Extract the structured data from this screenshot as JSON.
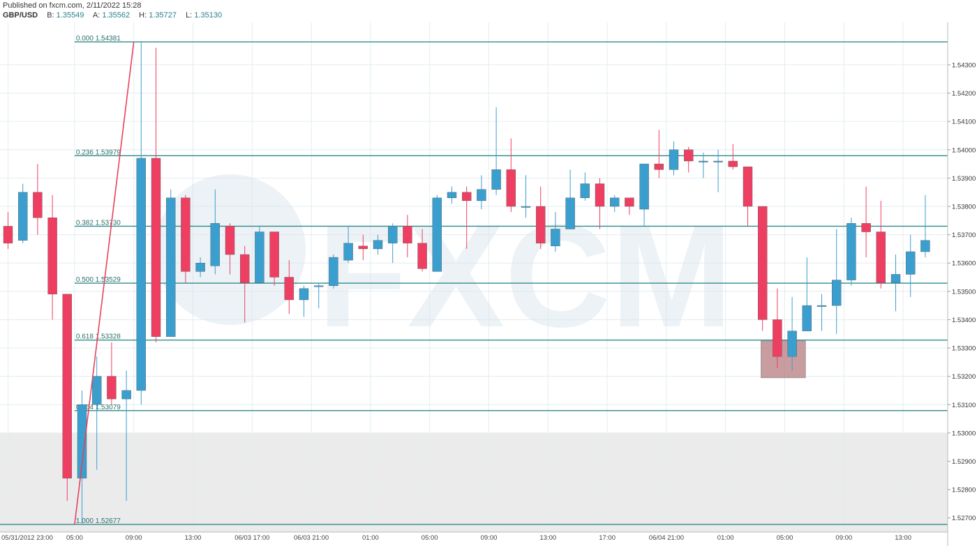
{
  "header": {
    "published": "Published on fxcm.com, 2/11/2022 15:28",
    "symbol": "GBP/USD",
    "bid_label": "B:",
    "bid": "1.35549",
    "ask_label": "A:",
    "ask": "1.35562",
    "high_label": "H:",
    "high": "1.35727",
    "low_label": "L:",
    "low": "1.35130"
  },
  "watermark": "FXCM",
  "colors": {
    "up": "#3a9fcf",
    "down": "#ee3f62",
    "fib": "#2f8a8a",
    "grid": "#e3ecf0",
    "shade": "#ebebeb",
    "zone": "#b77b7f"
  },
  "chart_data": {
    "type": "candlestick",
    "title": "",
    "ylim": [
      1.5265,
      1.5445
    ],
    "y_ticks": [
      "1.52700",
      "1.52800",
      "1.52900",
      "1.53000",
      "1.53100",
      "1.53200",
      "1.53300",
      "1.53400",
      "1.53500",
      "1.53600",
      "1.53700",
      "1.53800",
      "1.53900",
      "1.54000",
      "1.54100",
      "1.54200",
      "1.54300"
    ],
    "x_ticks": [
      {
        "label": "05/31/2012 23:00",
        "bar": 0
      },
      {
        "label": "05:00",
        "bar": 4.5
      },
      {
        "label": "09:00",
        "bar": 8.5
      },
      {
        "label": "13:00",
        "bar": 12.5
      },
      {
        "label": "06/03 17:00",
        "bar": 16.5
      },
      {
        "label": "06/03 21:00",
        "bar": 20.5
      },
      {
        "label": "01:00",
        "bar": 24.5
      },
      {
        "label": "05:00",
        "bar": 28.5
      },
      {
        "label": "09:00",
        "bar": 32.5
      },
      {
        "label": "13:00",
        "bar": 36.5
      },
      {
        "label": "17:00",
        "bar": 40.5
      },
      {
        "label": "06/04 21:00",
        "bar": 44.5
      },
      {
        "label": "01:00",
        "bar": 48.5
      },
      {
        "label": "05:00",
        "bar": 52.5
      },
      {
        "label": "09:00",
        "bar": 56.5
      },
      {
        "label": "13:00",
        "bar": 60.5
      }
    ],
    "grid": true,
    "fibonacci": [
      {
        "label": "0.000 1.54381",
        "value": 1.54381
      },
      {
        "label": "0.236 1.53979",
        "value": 1.53979
      },
      {
        "label": "0.382 1.53730",
        "value": 1.5373
      },
      {
        "label": "0.500 1.53529",
        "value": 1.53529
      },
      {
        "label": "0.618 1.53328",
        "value": 1.53328
      },
      {
        "label": "0.764 1.53079",
        "value": 1.53079
      },
      {
        "label": "1.000 1.52677",
        "value": 1.52677
      }
    ],
    "trend_line": {
      "from_bar": 4.5,
      "from_price": 1.52677,
      "to_bar": 8.5,
      "to_price": 1.54381
    },
    "shaded_region": {
      "y_from": 1.5265,
      "y_to": 1.53
    },
    "zone_box": {
      "bar_from": 50.9,
      "bar_to": 53.9,
      "price_low": 1.53195,
      "price_high": 1.53325
    },
    "candles": [
      {
        "o": 1.5373,
        "h": 1.5378,
        "l": 1.5365,
        "c": 1.5367
      },
      {
        "o": 1.5368,
        "h": 1.5388,
        "l": 1.5367,
        "c": 1.5385
      },
      {
        "o": 1.5385,
        "h": 1.5395,
        "l": 1.537,
        "c": 1.5376
      },
      {
        "o": 1.5376,
        "h": 1.5384,
        "l": 1.534,
        "c": 1.5349
      },
      {
        "o": 1.5349,
        "h": 1.5349,
        "l": 1.5276,
        "c": 1.5284
      },
      {
        "o": 1.5284,
        "h": 1.5315,
        "l": 1.5268,
        "c": 1.531
      },
      {
        "o": 1.531,
        "h": 1.5327,
        "l": 1.5287,
        "c": 1.532
      },
      {
        "o": 1.532,
        "h": 1.5332,
        "l": 1.531,
        "c": 1.5312
      },
      {
        "o": 1.5312,
        "h": 1.5322,
        "l": 1.5276,
        "c": 1.5315
      },
      {
        "o": 1.5315,
        "h": 1.5438,
        "l": 1.531,
        "c": 1.5397
      },
      {
        "o": 1.5397,
        "h": 1.5436,
        "l": 1.5332,
        "c": 1.5334
      },
      {
        "o": 1.5334,
        "h": 1.5386,
        "l": 1.5334,
        "c": 1.5383
      },
      {
        "o": 1.5383,
        "h": 1.5384,
        "l": 1.5353,
        "c": 1.5357
      },
      {
        "o": 1.5357,
        "h": 1.5362,
        "l": 1.5355,
        "c": 1.536
      },
      {
        "o": 1.5359,
        "h": 1.5386,
        "l": 1.5356,
        "c": 1.5374
      },
      {
        "o": 1.5373,
        "h": 1.5374,
        "l": 1.5356,
        "c": 1.5363
      },
      {
        "o": 1.5363,
        "h": 1.5366,
        "l": 1.5339,
        "c": 1.5353
      },
      {
        "o": 1.5353,
        "h": 1.5373,
        "l": 1.5353,
        "c": 1.5371
      },
      {
        "o": 1.5371,
        "h": 1.5371,
        "l": 1.5352,
        "c": 1.5355
      },
      {
        "o": 1.5355,
        "h": 1.5361,
        "l": 1.5342,
        "c": 1.5347
      },
      {
        "o": 1.5347,
        "h": 1.5352,
        "l": 1.5341,
        "c": 1.5351
      },
      {
        "o": 1.5352,
        "h": 1.5353,
        "l": 1.5344,
        "c": 1.5352
      },
      {
        "o": 1.5352,
        "h": 1.5363,
        "l": 1.5351,
        "c": 1.5362
      },
      {
        "o": 1.5361,
        "h": 1.5373,
        "l": 1.536,
        "c": 1.5367
      },
      {
        "o": 1.5366,
        "h": 1.537,
        "l": 1.5361,
        "c": 1.5365
      },
      {
        "o": 1.5365,
        "h": 1.537,
        "l": 1.5363,
        "c": 1.5368
      },
      {
        "o": 1.5367,
        "h": 1.5374,
        "l": 1.536,
        "c": 1.5373
      },
      {
        "o": 1.5373,
        "h": 1.5377,
        "l": 1.5362,
        "c": 1.5367
      },
      {
        "o": 1.5367,
        "h": 1.5372,
        "l": 1.5357,
        "c": 1.5358
      },
      {
        "o": 1.5357,
        "h": 1.5384,
        "l": 1.5357,
        "c": 1.5383
      },
      {
        "o": 1.5383,
        "h": 1.5387,
        "l": 1.5381,
        "c": 1.5385
      },
      {
        "o": 1.5385,
        "h": 1.5387,
        "l": 1.5365,
        "c": 1.5382
      },
      {
        "o": 1.5382,
        "h": 1.5391,
        "l": 1.5379,
        "c": 1.5386
      },
      {
        "o": 1.5386,
        "h": 1.5415,
        "l": 1.5384,
        "c": 1.5393
      },
      {
        "o": 1.5393,
        "h": 1.5404,
        "l": 1.5378,
        "c": 1.538
      },
      {
        "o": 1.538,
        "h": 1.5391,
        "l": 1.5376,
        "c": 1.538
      },
      {
        "o": 1.538,
        "h": 1.5387,
        "l": 1.5365,
        "c": 1.5367
      },
      {
        "o": 1.5366,
        "h": 1.5378,
        "l": 1.5364,
        "c": 1.5372
      },
      {
        "o": 1.5372,
        "h": 1.5393,
        "l": 1.5372,
        "c": 1.5383
      },
      {
        "o": 1.5383,
        "h": 1.5392,
        "l": 1.5382,
        "c": 1.5388
      },
      {
        "o": 1.5388,
        "h": 1.539,
        "l": 1.5372,
        "c": 1.538
      },
      {
        "o": 1.538,
        "h": 1.5384,
        "l": 1.5378,
        "c": 1.5383
      },
      {
        "o": 1.5383,
        "h": 1.5383,
        "l": 1.5377,
        "c": 1.538
      },
      {
        "o": 1.5379,
        "h": 1.5395,
        "l": 1.5373,
        "c": 1.5395
      },
      {
        "o": 1.5395,
        "h": 1.5407,
        "l": 1.539,
        "c": 1.5393
      },
      {
        "o": 1.5393,
        "h": 1.5403,
        "l": 1.5391,
        "c": 1.54
      },
      {
        "o": 1.54,
        "h": 1.5401,
        "l": 1.5392,
        "c": 1.5396
      },
      {
        "o": 1.5396,
        "h": 1.5399,
        "l": 1.539,
        "c": 1.5396
      },
      {
        "o": 1.5396,
        "h": 1.54,
        "l": 1.5385,
        "c": 1.5396
      },
      {
        "o": 1.5396,
        "h": 1.5402,
        "l": 1.5393,
        "c": 1.5394
      },
      {
        "o": 1.5394,
        "h": 1.5394,
        "l": 1.5373,
        "c": 1.538
      },
      {
        "o": 1.538,
        "h": 1.538,
        "l": 1.5336,
        "c": 1.534
      },
      {
        "o": 1.534,
        "h": 1.5351,
        "l": 1.5323,
        "c": 1.5327
      },
      {
        "o": 1.5327,
        "h": 1.5348,
        "l": 1.5322,
        "c": 1.5336
      },
      {
        "o": 1.5336,
        "h": 1.5362,
        "l": 1.5336,
        "c": 1.5345
      },
      {
        "o": 1.5345,
        "h": 1.5349,
        "l": 1.5336,
        "c": 1.5345
      },
      {
        "o": 1.5345,
        "h": 1.5372,
        "l": 1.5335,
        "c": 1.5354
      },
      {
        "o": 1.5354,
        "h": 1.5376,
        "l": 1.5352,
        "c": 1.5374
      },
      {
        "o": 1.5374,
        "h": 1.5387,
        "l": 1.5362,
        "c": 1.5371
      },
      {
        "o": 1.5371,
        "h": 1.5382,
        "l": 1.5351,
        "c": 1.5353
      },
      {
        "o": 1.5353,
        "h": 1.5363,
        "l": 1.5343,
        "c": 1.5356
      },
      {
        "o": 1.5356,
        "h": 1.537,
        "l": 1.5348,
        "c": 1.5364
      },
      {
        "o": 1.5364,
        "h": 1.5384,
        "l": 1.5362,
        "c": 1.5368
      }
    ]
  }
}
